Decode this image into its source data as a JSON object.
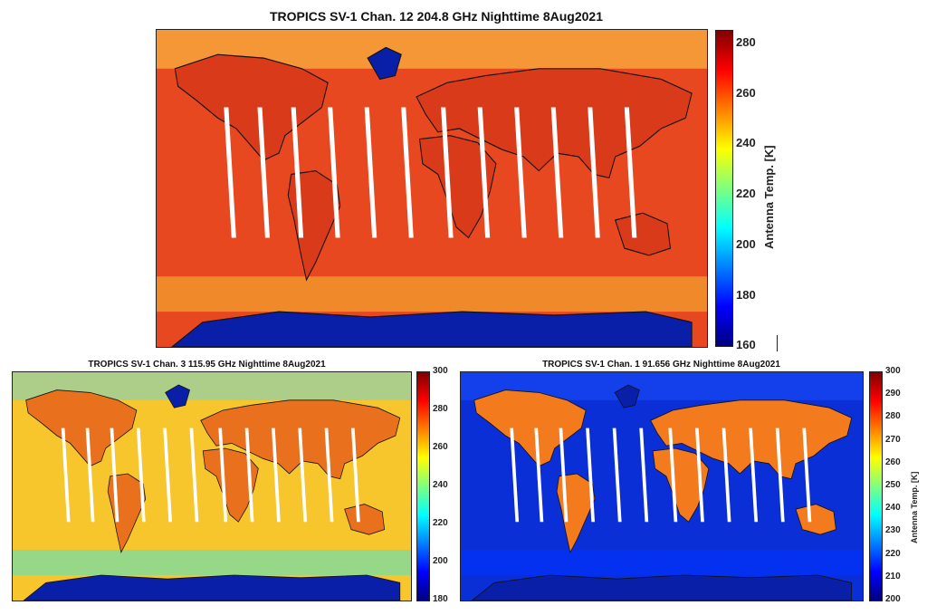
{
  "panels": [
    {
      "title": "TROPICS SV-1 Chan. 12 204.8 GHz Nighttime 8Aug2021",
      "colorbar": {
        "label": "Antenna Temp. [K]",
        "min": 160,
        "max": 285,
        "ticks": [
          "280",
          "260",
          "240",
          "220",
          "200",
          "180",
          "160"
        ],
        "tick_values": [
          280,
          260,
          240,
          220,
          200,
          180,
          160
        ]
      },
      "palette": "warm"
    },
    {
      "title": "TROPICS SV-1 Chan. 3 115.95 GHz Nighttime 8Aug2021",
      "colorbar": {
        "label": "",
        "min": 180,
        "max": 300,
        "ticks": [
          "300",
          "280",
          "260",
          "240",
          "220",
          "200",
          "180"
        ],
        "tick_values": [
          300,
          280,
          260,
          240,
          220,
          200,
          180
        ]
      },
      "palette": "mid"
    },
    {
      "title": "TROPICS SV-1 Chan. 1 91.656 GHz Nighttime 8Aug2021",
      "colorbar": {
        "label": "Antenna Temp. [K]",
        "min": 200,
        "max": 300,
        "ticks": [
          "300",
          "290",
          "280",
          "270",
          "260",
          "250",
          "240",
          "230",
          "220",
          "210",
          "200"
        ],
        "tick_values": [
          300,
          290,
          280,
          270,
          260,
          250,
          240,
          230,
          220,
          210,
          200
        ]
      },
      "palette": "cool"
    }
  ],
  "colormap": [
    "#00007f",
    "#0000ff",
    "#007fff",
    "#00ffff",
    "#7fff7f",
    "#ffff00",
    "#ff7f00",
    "#ff0000",
    "#7f0000"
  ],
  "colors": {
    "ocean_warm": "#e8481f",
    "ocean_mid": "#f7c52c",
    "ocean_cool": "#0a2fd6",
    "land_warm": "#d93a1a",
    "land_mid": "#e9701c",
    "land_cool": "#f47b1d",
    "polar": "#0a1fa8",
    "coast": "#111111",
    "swath_gap": "#ffffff"
  }
}
